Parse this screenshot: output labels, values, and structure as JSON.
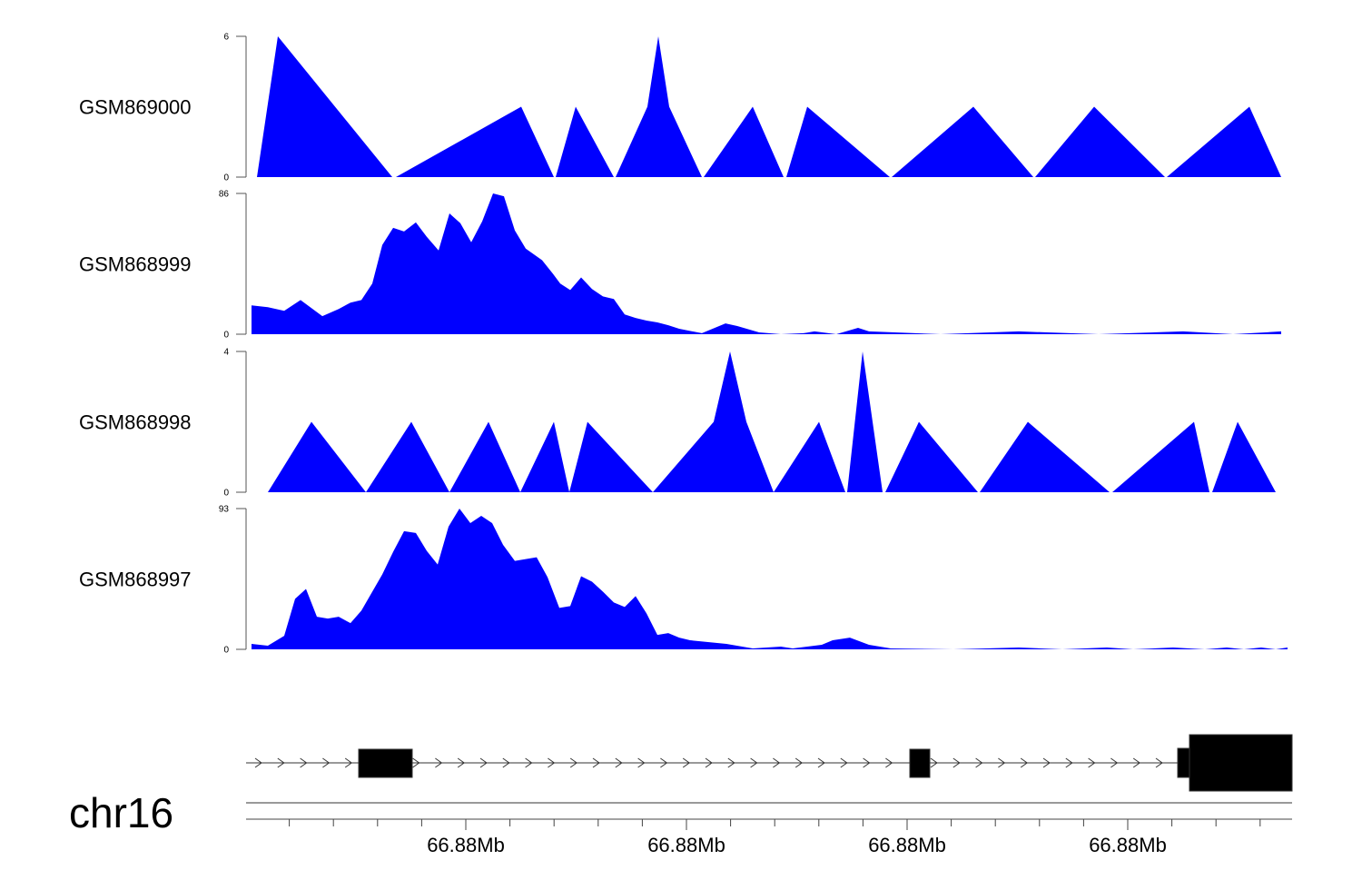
{
  "chart_data": {
    "type": "area",
    "fill_color": "#0000ff",
    "x_units": "bp offset from region start",
    "xlim": [
      0,
      1152
    ],
    "tracks": [
      {
        "name": "GSM869000",
        "ylim": [
          0,
          6
        ],
        "yticks": [
          "0",
          "6"
        ],
        "x": [
          12,
          35,
          161,
          165,
          303,
          339,
          341,
          363,
          405,
          407,
          442,
          454,
          466,
          502,
          504,
          558,
          592,
          595,
          618,
          709,
          711,
          801,
          867,
          869,
          934,
          1012,
          1014,
          1105,
          1140
        ],
        "y": [
          0,
          6,
          0,
          0,
          3,
          0,
          0,
          3,
          0,
          0,
          3,
          6,
          3,
          0,
          0,
          3,
          0,
          0,
          3,
          0,
          0,
          3,
          0,
          0,
          3,
          0,
          0,
          3,
          0
        ]
      },
      {
        "name": "GSM868999",
        "ylim": [
          0,
          86
        ],
        "yticks": [
          "0",
          "86"
        ],
        "x": [
          6,
          24,
          42,
          60,
          84,
          102,
          115,
          127,
          139,
          150,
          162,
          174,
          187,
          199,
          212,
          224,
          236,
          248,
          260,
          272,
          284,
          296,
          308,
          326,
          338,
          346,
          357,
          369,
          381,
          393,
          405,
          417,
          429,
          441,
          453,
          465,
          477,
          502,
          528,
          541,
          565,
          589,
          614,
          626,
          650,
          674,
          686,
          765,
          851,
          939,
          1032,
          1087,
          1140
        ],
        "y": [
          17.6,
          16.5,
          14.3,
          20.9,
          11,
          15.4,
          19.3,
          20.9,
          30.9,
          54.5,
          65,
          62.8,
          68.3,
          59.5,
          51.2,
          73.8,
          67.8,
          56.2,
          68.9,
          86,
          84.3,
          63.4,
          52.3,
          45.2,
          36.9,
          30.9,
          27,
          34.7,
          27.6,
          23.1,
          21.5,
          12.1,
          9.9,
          8.3,
          7.2,
          5.5,
          3.3,
          0.6,
          6.6,
          5,
          1.1,
          0,
          0.6,
          1.7,
          0,
          3.9,
          1.7,
          0,
          1.7,
          0,
          1.7,
          0,
          1.7
        ]
      },
      {
        "name": "GSM868998",
        "ylim": [
          0,
          4
        ],
        "yticks": [
          "0",
          "4"
        ],
        "x": [
          24,
          72,
          132,
          182,
          224,
          267,
          302,
          339,
          356,
          376,
          448,
          515,
          533,
          551,
          581,
          631,
          660,
          662,
          679,
          701,
          704,
          741,
          806,
          808,
          861,
          951,
          954,
          1044,
          1061,
          1064,
          1092,
          1134
        ],
        "y": [
          0,
          2,
          0,
          2,
          0,
          2,
          0,
          2,
          0,
          2,
          0,
          2,
          4,
          2,
          0,
          2,
          0,
          0,
          4,
          0,
          0,
          2,
          0,
          0,
          2,
          0,
          0,
          2,
          0,
          0,
          2,
          0
        ]
      },
      {
        "name": "GSM868997",
        "ylim": [
          0,
          93
        ],
        "yticks": [
          "0",
          "93"
        ],
        "x": [
          6,
          24,
          42,
          54,
          66,
          78,
          90,
          102,
          115,
          127,
          150,
          162,
          174,
          187,
          199,
          211,
          223,
          235,
          247,
          259,
          271,
          283,
          296,
          320,
          332,
          345,
          357,
          369,
          381,
          393,
          405,
          417,
          429,
          441,
          453,
          465,
          477,
          489,
          529,
          558,
          589,
          602,
          634,
          646,
          665,
          686,
          710,
          779,
          851,
          899,
          948,
          977,
          1021,
          1056,
          1080,
          1099,
          1118,
          1134,
          1147
        ],
        "y": [
          3.6,
          2.4,
          8.9,
          33.4,
          39.9,
          21.5,
          20.3,
          21.5,
          17.3,
          25.6,
          49.5,
          64.4,
          78.1,
          76.9,
          65,
          56,
          81.1,
          93,
          83.4,
          88.2,
          83.4,
          69.1,
          58.4,
          60.8,
          47.7,
          27.4,
          28.6,
          48.3,
          44.7,
          38.1,
          31,
          28,
          35.2,
          23.8,
          9.5,
          10.7,
          7.7,
          6,
          3.6,
          0.6,
          1.8,
          0.6,
          3,
          6,
          7.7,
          3,
          0.6,
          0,
          1.2,
          0,
          1.2,
          0,
          1.2,
          0,
          1.2,
          0,
          1.2,
          0,
          1.2
        ]
      }
    ],
    "gene_model": {
      "strand": "+",
      "intron_range": [
        0,
        1039
      ],
      "exons": [
        {
          "start": 124,
          "end": 183,
          "kind": "coding"
        },
        {
          "start": 731,
          "end": 753,
          "kind": "coding"
        },
        {
          "start": 1026,
          "end": 1039,
          "kind": "utr"
        },
        {
          "start": 1039,
          "end": 1152,
          "kind": "coding"
        }
      ]
    },
    "x_axis": {
      "chromosome": "chr16",
      "major_ticks": [
        242,
        485,
        728,
        971
      ],
      "major_labels": [
        "66.88Mb",
        "66.88Mb",
        "66.88Mb",
        "66.88Mb"
      ],
      "minor_tick_step": 48.6
    }
  }
}
